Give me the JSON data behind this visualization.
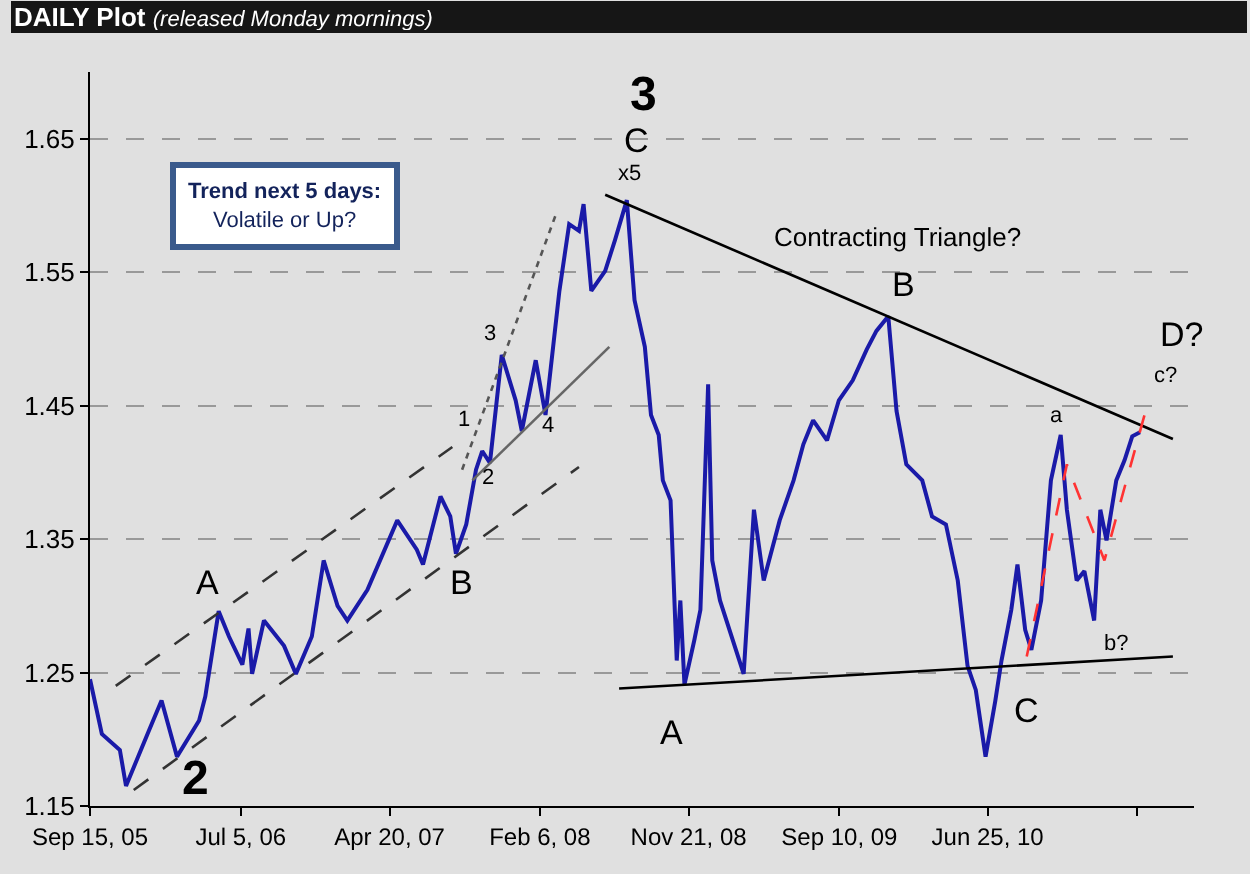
{
  "chart_data": {
    "type": "line",
    "title": "DAILY Plot",
    "subtitle": "(released Monday mornings)",
    "x": [
      "2005-09-15",
      "2005-10-08",
      "2005-11-12",
      "2005-11-24",
      "2006-01-08",
      "2006-02-01",
      "2006-03-03",
      "2006-04-15",
      "2006-04-27",
      "2006-05-23",
      "2006-06-12",
      "2006-07-08",
      "2006-07-20",
      "2006-07-27",
      "2006-08-19",
      "2006-09-27",
      "2006-10-20",
      "2006-11-20",
      "2006-12-13",
      "2007-01-09",
      "2007-01-28",
      "2007-03-08",
      "2007-05-05",
      "2007-06-12",
      "2007-06-24",
      "2007-07-28",
      "2007-08-16",
      "2007-08-27",
      "2007-09-16",
      "2007-10-05",
      "2007-10-17",
      "2007-11-01",
      "2007-11-24",
      "2007-12-21",
      "2008-01-02",
      "2008-01-29",
      "2008-02-17",
      "2008-03-15",
      "2008-04-03",
      "2008-04-22",
      "2008-05-01",
      "2008-05-16",
      "2008-06-12",
      "2008-07-01",
      "2008-07-24",
      "2008-08-08",
      "2008-08-28",
      "2008-09-09",
      "2008-09-24",
      "2008-10-02",
      "2008-10-17",
      "2008-10-29",
      "2008-11-05",
      "2008-11-13",
      "2008-12-02",
      "2008-12-14",
      "2008-12-29",
      "2009-01-06",
      "2009-01-21",
      "2009-03-08",
      "2009-03-28",
      "2009-04-16",
      "2009-05-17",
      "2009-06-13",
      "2009-07-02",
      "2009-07-21",
      "2009-08-17",
      "2009-09-09",
      "2009-10-06",
      "2009-11-02",
      "2009-11-21",
      "2009-12-14",
      "2009-12-30",
      "2010-01-18",
      "2010-02-18",
      "2010-03-09",
      "2010-04-05",
      "2010-04-28",
      "2010-05-17",
      "2010-06-02",
      "2010-06-21",
      "2010-07-10",
      "2010-07-22",
      "2010-08-10",
      "2010-08-22",
      "2010-09-06",
      "2010-09-18",
      "2010-10-07",
      "2010-10-26",
      "2010-11-14",
      "2010-11-26",
      "2010-12-15",
      "2010-12-30",
      "2011-01-18",
      "2011-01-30",
      "2011-02-11",
      "2011-03-02",
      "2011-03-18",
      "2011-04-02",
      "2011-04-17"
    ],
    "series": [
      {
        "color": "#1a1aa8",
        "values": [
          1.245,
          1.204,
          1.192,
          1.165,
          1.207,
          1.229,
          1.187,
          1.214,
          1.232,
          1.296,
          1.277,
          1.256,
          1.283,
          1.249,
          1.289,
          1.27,
          1.249,
          1.277,
          1.334,
          1.3,
          1.289,
          1.312,
          1.364,
          1.342,
          1.331,
          1.382,
          1.367,
          1.339,
          1.361,
          1.402,
          1.416,
          1.407,
          1.488,
          1.454,
          1.431,
          1.484,
          1.443,
          1.536,
          1.586,
          1.581,
          1.601,
          1.536,
          1.551,
          1.574,
          1.604,
          1.529,
          1.494,
          1.443,
          1.428,
          1.394,
          1.379,
          1.259,
          1.304,
          1.241,
          1.274,
          1.297,
          1.466,
          1.334,
          1.304,
          1.249,
          1.372,
          1.319,
          1.364,
          1.394,
          1.421,
          1.439,
          1.424,
          1.454,
          1.469,
          1.492,
          1.506,
          1.517,
          1.446,
          1.406,
          1.394,
          1.367,
          1.361,
          1.319,
          1.255,
          1.237,
          1.187,
          1.229,
          1.259,
          1.297,
          1.331,
          1.282,
          1.267,
          1.304,
          1.394,
          1.428,
          1.372,
          1.319,
          1.326,
          1.289,
          1.372,
          1.349,
          1.394,
          1.409,
          1.427,
          1.43
        ]
      },
      {
        "type": "line",
        "color": "#333333",
        "line_style": "dashed",
        "x": [
          "2005-11-04",
          "2007-08-20"
        ],
        "values": [
          1.24,
          1.419
        ]
      },
      {
        "type": "line",
        "color": "#333333",
        "line_style": "dashed",
        "x": [
          "2005-12-09",
          "2008-04-22"
        ],
        "values": [
          1.162,
          1.404
        ]
      },
      {
        "type": "line",
        "color": "#555555",
        "line_style": "dotted",
        "x": [
          "2007-09-08",
          "2008-03-07"
        ],
        "values": [
          1.402,
          1.592
        ]
      },
      {
        "type": "line",
        "color": "#666666",
        "line_style": "solid",
        "x": [
          "2007-09-28",
          "2008-06-20"
        ],
        "values": [
          1.394,
          1.494
        ]
      },
      {
        "type": "line",
        "color": "#000000",
        "line_style": "solid",
        "x": [
          "2008-06-12",
          "2011-06-20"
        ],
        "values": [
          1.608,
          1.425
        ]
      },
      {
        "type": "line",
        "color": "#000000",
        "line_style": "solid",
        "x": [
          "2008-07-09",
          "2011-06-20"
        ],
        "values": [
          1.238,
          1.262
        ]
      },
      {
        "type": "line",
        "color": "#ff3333",
        "line_style": "dashed",
        "x": [
          "2010-09-09",
          "2010-11-26",
          "2011-02-07",
          "2011-04-28"
        ],
        "values": [
          1.262,
          1.406,
          1.334,
          1.446
        ]
      }
    ],
    "xlim": [
      "2005-09-15",
      "2011-07-31"
    ],
    "xticks": [
      {
        "value": "2005-09-15",
        "label": "Sep 15, 05"
      },
      {
        "value": "2006-07-05",
        "label": "Jul 5, 06"
      },
      {
        "value": "2007-04-20",
        "label": "Apr 20, 07"
      },
      {
        "value": "2008-02-06",
        "label": "Feb 6, 08"
      },
      {
        "value": "2008-11-21",
        "label": "Nov 21, 08"
      },
      {
        "value": "2009-09-10",
        "label": "Sep 10, 09"
      },
      {
        "value": "2010-06-25",
        "label": "Jun 25, 10"
      },
      {
        "value": "2011-04-11",
        "label": null
      }
    ],
    "ylim": [
      1.15,
      1.7
    ],
    "yticks": [
      1.15,
      1.25,
      1.35,
      1.45,
      1.55,
      1.65
    ],
    "grid": "y",
    "legend": false,
    "marker": "none",
    "annotations": [
      "3",
      "C",
      "x5",
      "Contracting Triangle?",
      "B",
      "D?",
      "c?",
      "a",
      "b?",
      "A",
      "C",
      "A",
      "B",
      "2",
      "1",
      "2",
      "3",
      "4",
      "Trend next 5 days:\nVolatile or Up?"
    ]
  }
}
